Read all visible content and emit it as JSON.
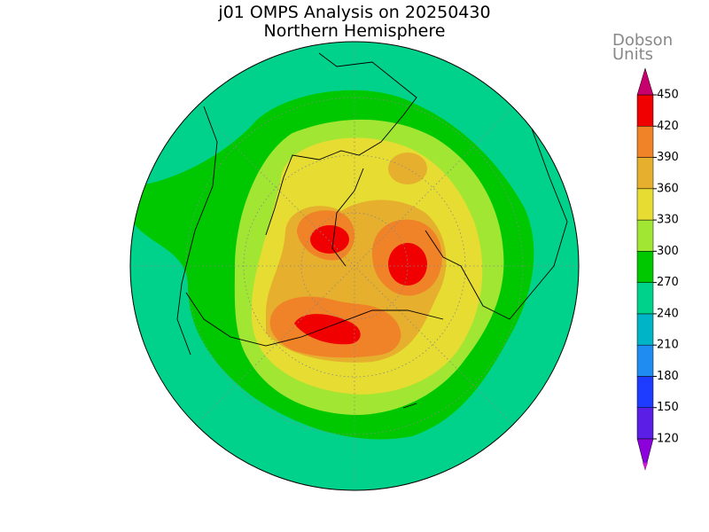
{
  "header": {
    "title": "j01 OMPS Analysis on 20250430",
    "subtitle": "Northern Hemisphere"
  },
  "colorbar": {
    "label_lines": [
      "Dobson",
      "Units"
    ],
    "ticks": [
      120,
      150,
      180,
      210,
      240,
      270,
      300,
      330,
      360,
      390,
      420,
      450
    ],
    "below_color": "#c81ec8",
    "colors": [
      "#8c00dc",
      "#5a1ee6",
      "#1e3cff",
      "#1e8cf0",
      "#00b4c8",
      "#00d28c",
      "#00c800",
      "#a0e632",
      "#e6dc32",
      "#e6af2d",
      "#f08228",
      "#f00000"
    ],
    "above_color": "#c8006e"
  }
}
